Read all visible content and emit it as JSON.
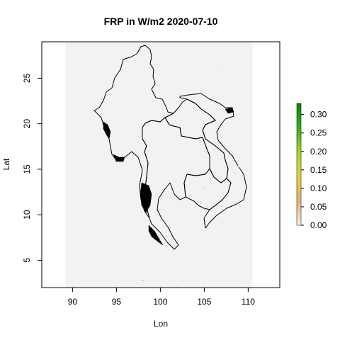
{
  "chart_data": {
    "type": "heatmap",
    "title": "FRP in W/m2 2020-07-10",
    "xlabel": "Lon",
    "ylabel": "Lat",
    "xlim": [
      86.5,
      113.6
    ],
    "ylim": [
      2.0,
      29.0
    ],
    "x_ticks": [
      90,
      95,
      100,
      105,
      110
    ],
    "y_ticks": [
      5,
      10,
      15,
      20,
      25
    ],
    "raster_extent": {
      "lon": [
        89.2,
        110.5
      ],
      "lat": [
        2.0,
        28.9
      ]
    },
    "raster_background_color": "#f2f2f2",
    "colorbar": {
      "range": [
        0.0,
        0.33
      ],
      "ticks": [
        0.0,
        0.05,
        0.1,
        0.15,
        0.2,
        0.25,
        0.3
      ],
      "tick_labels": [
        "0.00",
        "0.05",
        "0.10",
        "0.15",
        "0.20",
        "0.25",
        "0.30"
      ],
      "colors": [
        "#f2f2f2",
        "#ecb176",
        "#e6d53c",
        "#a8d82a",
        "#36b21a",
        "#008a00"
      ]
    },
    "fire_points": [
      {
        "lon": 106.9,
        "lat": 26.4,
        "value": 0.02
      },
      {
        "lon": 105.0,
        "lat": 13.0,
        "value": 0.03
      },
      {
        "lon": 105.7,
        "lat": 11.3,
        "value": 0.02
      },
      {
        "lon": 105.3,
        "lat": 10.9,
        "value": 0.03
      },
      {
        "lon": 107.0,
        "lat": 10.9,
        "value": 0.02
      },
      {
        "lon": 108.5,
        "lat": 14.6,
        "value": 0.02
      },
      {
        "lon": 108.9,
        "lat": 15.3,
        "value": 0.02
      },
      {
        "lon": 100.7,
        "lat": 7.6,
        "value": 0.02
      },
      {
        "lon": 98.0,
        "lat": 2.8,
        "value": 0.12
      },
      {
        "lon": 102.5,
        "lat": 2.8,
        "value": 0.03
      }
    ]
  }
}
